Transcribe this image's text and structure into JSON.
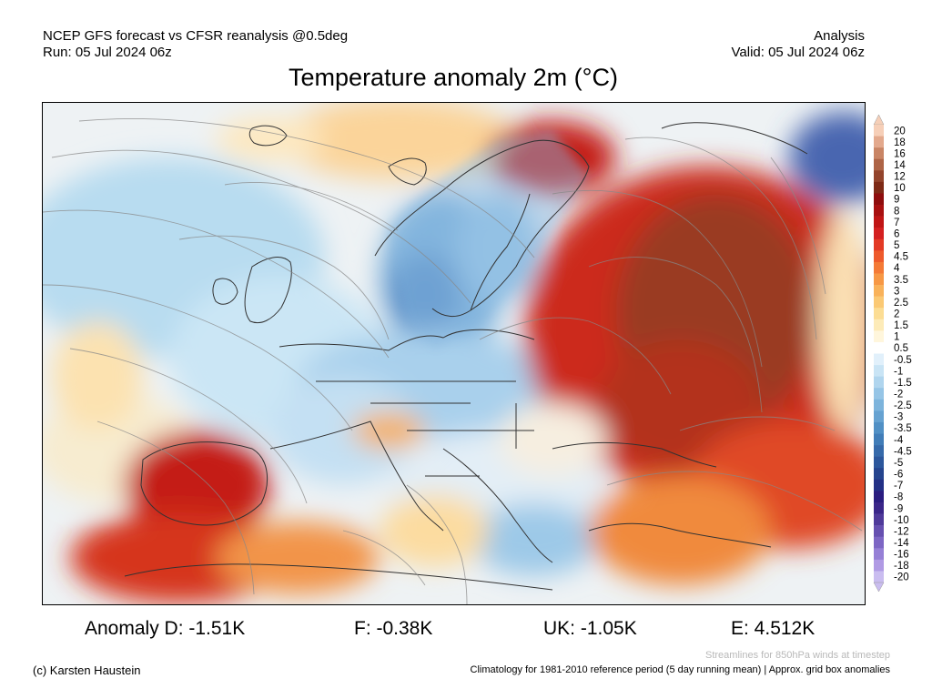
{
  "header": {
    "left_line1": "NCEP GFS forecast vs CFSR reanalysis @0.5deg",
    "left_line2": "Run: 05 Jul 2024 06z",
    "right_line1": "Analysis",
    "right_line2": "Valid: 05 Jul 2024 06z"
  },
  "title": "Temperature anomaly 2m (°C)",
  "colorbar": {
    "levels": [
      "20",
      "18",
      "16",
      "14",
      "12",
      "10",
      "9",
      "8",
      "7",
      "6",
      "5",
      "4.5",
      "4",
      "3.5",
      "3",
      "2.5",
      "2",
      "1.5",
      "1",
      "0.5",
      "-0.5",
      "-1",
      "-1.5",
      "-2",
      "-2.5",
      "-3",
      "-3.5",
      "-4",
      "-4.5",
      "-5",
      "-6",
      "-7",
      "-8",
      "-9",
      "-10",
      "-12",
      "-14",
      "-16",
      "-18",
      "-20"
    ],
    "colors": [
      "#f6cfb8",
      "#e3a98d",
      "#c98565",
      "#ae6446",
      "#93442c",
      "#7e2a16",
      "#8e0d0d",
      "#a81010",
      "#c01515",
      "#d42020",
      "#e33a25",
      "#ee5a2c",
      "#f47a36",
      "#f79845",
      "#f9b25a",
      "#fbc974",
      "#fcdd94",
      "#fdebb8",
      "#fff6dc",
      "#ffffff",
      "#e1f0fb",
      "#c9e4f5",
      "#b0d5ee",
      "#96c5e6",
      "#7db4dc",
      "#66a2d1",
      "#5190c5",
      "#417db8",
      "#366aaa",
      "#2c579c",
      "#25448e",
      "#233086",
      "#2a1d80",
      "#3a2689",
      "#4f3a9a",
      "#6650b0",
      "#7d66c4",
      "#9680d6",
      "#b09ae4",
      "#cabdf0"
    ]
  },
  "stats": {
    "d": "Anomaly D: -1.51K",
    "f": "F: -0.38K",
    "uk": "UK: -1.05K",
    "e": "E: 4.512K"
  },
  "footer": {
    "streamlines": "Streamlines for 850hPa winds at timestep",
    "copyright": "(c) Karsten Haustein",
    "climatology": "Climatology for 1981-2010 reference period (5 day running mean) | Approx. grid box anomalies"
  }
}
